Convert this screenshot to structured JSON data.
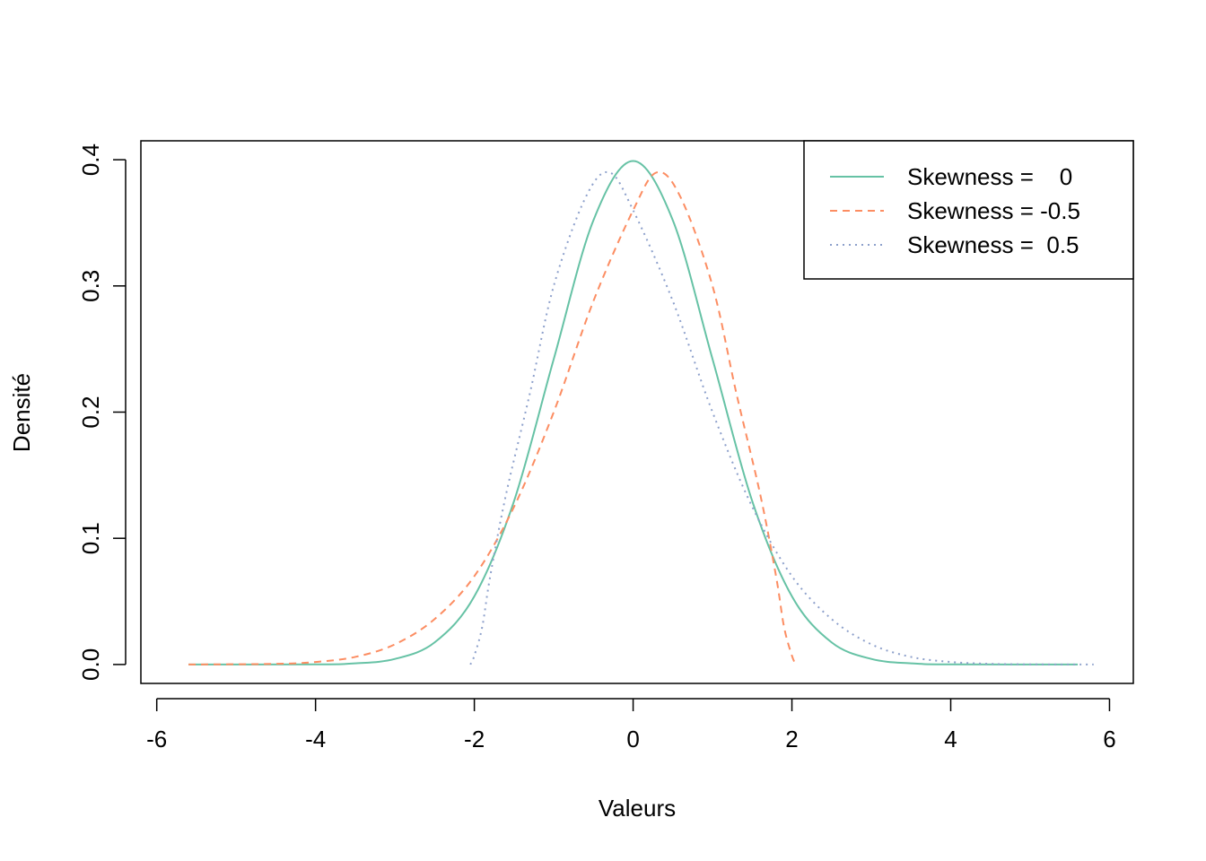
{
  "chart_data": {
    "type": "line",
    "title": "",
    "xlabel": "Valeurs",
    "ylabel": "Densité",
    "xlim": [
      -6.2,
      6.3
    ],
    "ylim": [
      -0.015,
      0.415
    ],
    "x_ticks": [
      -6,
      -4,
      -2,
      0,
      2,
      4,
      6
    ],
    "x_tick_labels": [
      "-6",
      "-4",
      "-2",
      "0",
      "2",
      "4",
      "6"
    ],
    "y_ticks": [
      0.0,
      0.1,
      0.2,
      0.3,
      0.4
    ],
    "y_tick_labels": [
      "0.0",
      "0.1",
      "0.2",
      "0.3",
      "0.4"
    ],
    "grid": false,
    "legend_position": "top-right",
    "series": [
      {
        "name": "Skewness =    0",
        "color": "#66C2A5",
        "dash": "solid",
        "x": [
          -5.6,
          -4.0,
          -3.5,
          -3.0,
          -2.5,
          -2.0,
          -1.5,
          -1.0,
          -0.5,
          0.0,
          0.5,
          1.0,
          1.5,
          2.0,
          2.5,
          3.0,
          3.5,
          4.0,
          5.6
        ],
        "y": [
          0.0,
          0.0001,
          0.0009,
          0.0044,
          0.0175,
          0.054,
          0.1295,
          0.242,
          0.352,
          0.399,
          0.352,
          0.242,
          0.1295,
          0.054,
          0.0175,
          0.0044,
          0.0009,
          0.0001,
          0.0
        ]
      },
      {
        "name": "Skewness = -0.5",
        "color": "#FC8D62",
        "dash": "dashed",
        "x": [
          -5.6,
          -4.5,
          -4.0,
          -3.5,
          -3.0,
          -2.5,
          -2.0,
          -1.5,
          -1.0,
          -0.5,
          0.0,
          0.3,
          0.6,
          1.0,
          1.3,
          1.6,
          1.8,
          1.9,
          2.0,
          2.05
        ],
        "y": [
          0.0,
          0.0005,
          0.002,
          0.006,
          0.016,
          0.036,
          0.07,
          0.125,
          0.2,
          0.288,
          0.36,
          0.39,
          0.37,
          0.3,
          0.215,
          0.135,
          0.07,
          0.03,
          0.007,
          0.0
        ]
      },
      {
        "name": "Skewness =  0.5",
        "color": "#8DA0CB",
        "dash": "dotted",
        "x": [
          -2.05,
          -2.0,
          -1.9,
          -1.8,
          -1.6,
          -1.3,
          -1.0,
          -0.6,
          -0.3,
          0.0,
          0.5,
          1.0,
          1.5,
          2.0,
          2.5,
          3.0,
          3.5,
          4.0,
          4.5,
          5.0,
          5.8
        ],
        "y": [
          0.0,
          0.007,
          0.03,
          0.07,
          0.135,
          0.215,
          0.3,
          0.37,
          0.39,
          0.36,
          0.288,
          0.2,
          0.125,
          0.07,
          0.036,
          0.016,
          0.006,
          0.002,
          0.0005,
          0.0001,
          0.0
        ]
      }
    ]
  }
}
